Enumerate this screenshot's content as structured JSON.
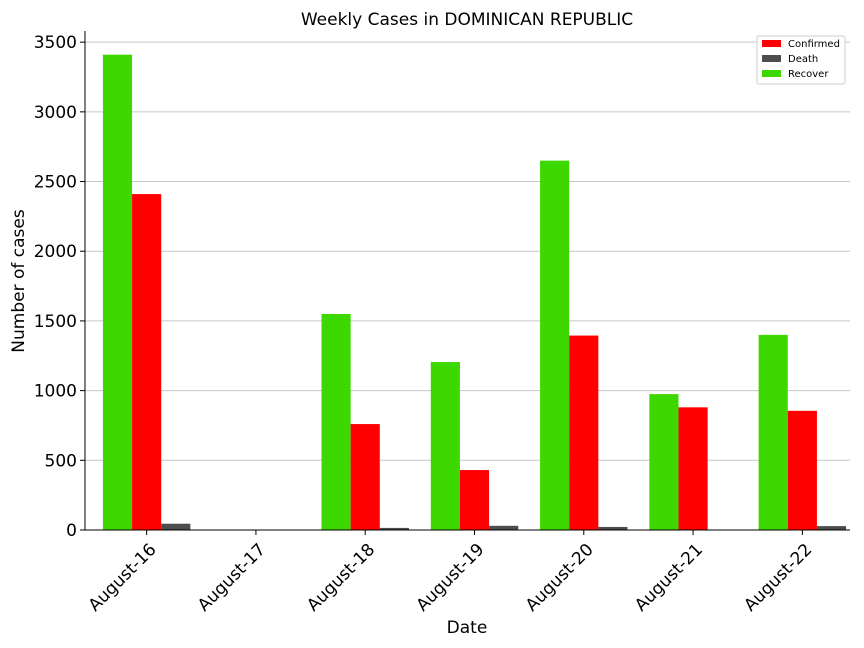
{
  "chart_data": {
    "type": "bar",
    "title": "Weekly Cases in DOMINICAN REPUBLIC",
    "xlabel": "Date",
    "ylabel": "Number of cases",
    "categories": [
      "August-16",
      "August-17",
      "August-18",
      "August-19",
      "August-20",
      "August-21",
      "August-22"
    ],
    "series": [
      {
        "name": "Recover",
        "color": "#3dd800",
        "values": [
          3410,
          0,
          1550,
          1205,
          2650,
          975,
          1400
        ]
      },
      {
        "name": "Confirmed",
        "color": "#ff0000",
        "values": [
          2410,
          0,
          760,
          430,
          1395,
          880,
          855
        ]
      },
      {
        "name": "Death",
        "color": "#4d4d4d",
        "values": [
          45,
          0,
          15,
          30,
          22,
          0,
          28
        ]
      }
    ],
    "legend_order": [
      "Confirmed",
      "Death",
      "Recover"
    ],
    "yticks": [
      0,
      500,
      1000,
      1500,
      2000,
      2500,
      3000,
      3500
    ],
    "ylim": [
      0,
      3580
    ],
    "grid": "horizontal",
    "legend_position": "top-right"
  }
}
